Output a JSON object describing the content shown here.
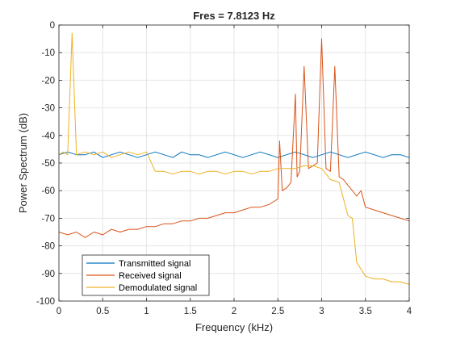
{
  "chart_data": {
    "type": "line",
    "title": "Fres = 7.8123 Hz",
    "xlabel": "Frequency (kHz)",
    "ylabel": "Power Spectrum (dB)",
    "xlim": [
      0,
      4
    ],
    "ylim": [
      -100,
      0
    ],
    "xticks": [
      0,
      0.5,
      1,
      1.5,
      2,
      2.5,
      3,
      3.5,
      4
    ],
    "xtick_labels": [
      "0",
      "0.5",
      "1",
      "1.5",
      "2",
      "2.5",
      "3",
      "3.5",
      "4"
    ],
    "yticks": [
      0,
      -10,
      -20,
      -30,
      -40,
      -50,
      -60,
      -70,
      -80,
      -90,
      -100
    ],
    "ytick_labels": [
      "0",
      "-10",
      "-20",
      "-30",
      "-40",
      "-50",
      "-60",
      "-70",
      "-80",
      "-90",
      "-100"
    ],
    "grid": true,
    "legend_position": "bottom-left",
    "series": [
      {
        "name": "Transmitted signal",
        "color": "#0072BD",
        "x": [
          0,
          0.1,
          0.2,
          0.3,
          0.4,
          0.5,
          0.6,
          0.7,
          0.8,
          0.9,
          1.0,
          1.1,
          1.2,
          1.3,
          1.4,
          1.5,
          1.6,
          1.7,
          1.8,
          1.9,
          2.0,
          2.1,
          2.2,
          2.3,
          2.4,
          2.5,
          2.6,
          2.7,
          2.8,
          2.9,
          3.0,
          3.1,
          3.2,
          3.3,
          3.4,
          3.5,
          3.6,
          3.7,
          3.8,
          3.9,
          4.0
        ],
        "y": [
          -47,
          -46,
          -47,
          -47,
          -46,
          -48,
          -47,
          -46,
          -47,
          -48,
          -47,
          -46,
          -47,
          -48,
          -46,
          -47,
          -47,
          -48,
          -47,
          -46,
          -47,
          -48,
          -47,
          -46,
          -47,
          -48,
          -47,
          -46,
          -47,
          -48,
          -47,
          -46,
          -47,
          -48,
          -47,
          -46,
          -47,
          -48,
          -47,
          -47,
          -48
        ]
      },
      {
        "name": "Received signal",
        "color": "#D95319",
        "x": [
          0,
          0.1,
          0.2,
          0.3,
          0.4,
          0.5,
          0.6,
          0.7,
          0.8,
          0.9,
          1.0,
          1.1,
          1.2,
          1.3,
          1.4,
          1.5,
          1.6,
          1.7,
          1.8,
          1.9,
          2.0,
          2.1,
          2.2,
          2.3,
          2.4,
          2.5,
          2.52,
          2.55,
          2.6,
          2.65,
          2.7,
          2.72,
          2.75,
          2.8,
          2.85,
          2.9,
          2.95,
          3.0,
          3.05,
          3.1,
          3.15,
          3.2,
          3.25,
          3.3,
          3.35,
          3.4,
          3.45,
          3.5,
          3.6,
          3.7,
          3.8,
          3.9,
          4.0
        ],
        "y": [
          -75,
          -76,
          -75,
          -77,
          -75,
          -76,
          -74,
          -75,
          -74,
          -74,
          -73,
          -73,
          -72,
          -72,
          -71,
          -71,
          -70,
          -70,
          -69,
          -68,
          -68,
          -67,
          -66,
          -66,
          -65,
          -63,
          -42,
          -60,
          -59,
          -57,
          -25,
          -55,
          -53,
          -15,
          -52,
          -51,
          -50,
          -5,
          -52,
          -53,
          -15,
          -55,
          -56,
          -58,
          -60,
          -62,
          -60,
          -66,
          -67,
          -68,
          -69,
          -70,
          -71
        ]
      },
      {
        "name": "Demodulated signal",
        "color": "#EDB120",
        "x": [
          0,
          0.05,
          0.1,
          0.15,
          0.2,
          0.3,
          0.4,
          0.5,
          0.6,
          0.7,
          0.8,
          0.9,
          1.0,
          1.1,
          1.2,
          1.3,
          1.4,
          1.5,
          1.6,
          1.7,
          1.8,
          1.9,
          2.0,
          2.1,
          2.2,
          2.3,
          2.4,
          2.5,
          2.6,
          2.7,
          2.8,
          2.9,
          3.0,
          3.1,
          3.2,
          3.3,
          3.35,
          3.4,
          3.5,
          3.6,
          3.7,
          3.8,
          3.9,
          4.0
        ],
        "y": [
          -47,
          -46,
          -47,
          -3,
          -47,
          -46,
          -47,
          -46,
          -48,
          -47,
          -46,
          -47,
          -46,
          -53,
          -53,
          -54,
          -53,
          -53,
          -54,
          -53,
          -53,
          -54,
          -53,
          -53,
          -54,
          -53,
          -53,
          -52,
          -52,
          -52,
          -51,
          -51,
          -52,
          -56,
          -57,
          -69,
          -70,
          -86,
          -91,
          -92,
          -92,
          -93,
          -93,
          -94
        ]
      }
    ]
  }
}
